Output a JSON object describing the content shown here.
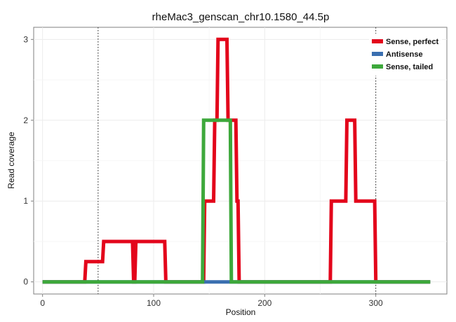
{
  "chart_data": {
    "type": "line",
    "title": "rheMac3_genscan_chr10.1580_44.5p",
    "xlabel": "Position",
    "ylabel": "Read coverage",
    "xlim": [
      -8,
      364
    ],
    "ylim": [
      -0.15,
      3.15
    ],
    "xticks": [
      0,
      100,
      200,
      300
    ],
    "yticks": [
      0,
      1,
      2,
      3
    ],
    "grid": true,
    "legend_position": "top-right",
    "vlines": [
      50,
      300
    ],
    "series": [
      {
        "name": "Sense, perfect",
        "color": "#E3051B",
        "points": [
          [
            0,
            0
          ],
          [
            38,
            0
          ],
          [
            39,
            0.25
          ],
          [
            54,
            0.25
          ],
          [
            55,
            0.5
          ],
          [
            81,
            0.5
          ],
          [
            82,
            0
          ],
          [
            83,
            0
          ],
          [
            84,
            0.5
          ],
          [
            110,
            0.5
          ],
          [
            111,
            0
          ],
          [
            145,
            0
          ],
          [
            146,
            1
          ],
          [
            154,
            1
          ],
          [
            155,
            2
          ],
          [
            157,
            2
          ],
          [
            158,
            3
          ],
          [
            166,
            3
          ],
          [
            167,
            2
          ],
          [
            174,
            2
          ],
          [
            175,
            1
          ],
          [
            176,
            1
          ],
          [
            177,
            0
          ],
          [
            259,
            0
          ],
          [
            260,
            1
          ],
          [
            273,
            1
          ],
          [
            274,
            2
          ],
          [
            281,
            2
          ],
          [
            282,
            1
          ],
          [
            299,
            1
          ],
          [
            300,
            0
          ],
          [
            349,
            0
          ]
        ]
      },
      {
        "name": "Antisense",
        "color": "#3A6FB0",
        "points": [
          [
            0,
            0
          ],
          [
            349,
            0
          ]
        ]
      },
      {
        "name": "Sense, tailed",
        "color": "#3DA83B",
        "points": [
          [
            0,
            0
          ],
          [
            144,
            0
          ],
          [
            145,
            2
          ],
          [
            169,
            2
          ],
          [
            170,
            0
          ],
          [
            349,
            0
          ]
        ]
      }
    ]
  }
}
